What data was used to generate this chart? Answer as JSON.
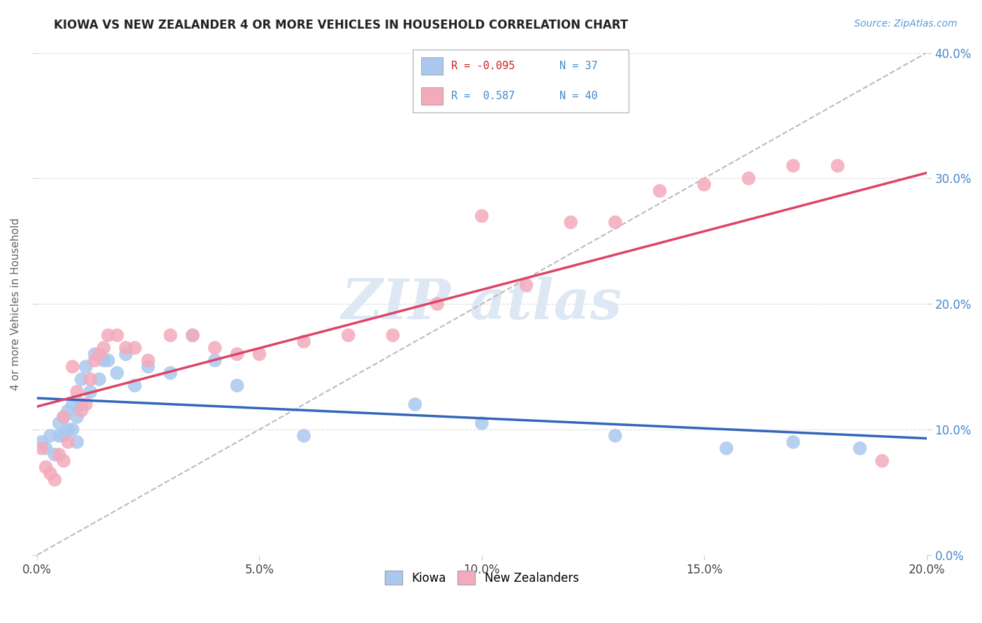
{
  "title": "KIOWA VS NEW ZEALANDER 4 OR MORE VEHICLES IN HOUSEHOLD CORRELATION CHART",
  "source_text": "Source: ZipAtlas.com",
  "xlabel_ticks": [
    "0.0%",
    "5.0%",
    "10.0%",
    "15.0%",
    "20.0%"
  ],
  "ylabel_ticks_right": [
    "0.0%",
    "10.0%",
    "20.0%",
    "30.0%",
    "40.0%"
  ],
  "xmin": 0.0,
  "xmax": 0.2,
  "ymin": 0.0,
  "ymax": 0.4,
  "ylabel": "4 or more Vehicles in Household",
  "legend_label1": "Kiowa",
  "legend_label2": "New Zealanders",
  "R1": -0.095,
  "N1": 37,
  "R2": 0.587,
  "N2": 40,
  "color1": "#aac8ee",
  "color2": "#f4aabb",
  "trendline1_color": "#3366bb",
  "trendline2_color": "#dd4466",
  "trendline_dashed_color": "#bbbbbb",
  "kiowa_x": [
    0.001,
    0.002,
    0.003,
    0.004,
    0.005,
    0.005,
    0.006,
    0.006,
    0.007,
    0.007,
    0.008,
    0.008,
    0.009,
    0.009,
    0.01,
    0.01,
    0.011,
    0.012,
    0.013,
    0.014,
    0.015,
    0.016,
    0.018,
    0.02,
    0.022,
    0.025,
    0.03,
    0.035,
    0.04,
    0.045,
    0.06,
    0.085,
    0.1,
    0.13,
    0.155,
    0.17,
    0.185
  ],
  "kiowa_y": [
    0.09,
    0.085,
    0.095,
    0.08,
    0.095,
    0.105,
    0.11,
    0.095,
    0.115,
    0.1,
    0.12,
    0.1,
    0.11,
    0.09,
    0.14,
    0.12,
    0.15,
    0.13,
    0.16,
    0.14,
    0.155,
    0.155,
    0.145,
    0.16,
    0.135,
    0.15,
    0.145,
    0.175,
    0.155,
    0.135,
    0.095,
    0.12,
    0.105,
    0.095,
    0.085,
    0.09,
    0.085
  ],
  "nz_x": [
    0.001,
    0.002,
    0.003,
    0.004,
    0.005,
    0.006,
    0.006,
    0.007,
    0.008,
    0.009,
    0.01,
    0.011,
    0.012,
    0.013,
    0.014,
    0.015,
    0.016,
    0.018,
    0.02,
    0.022,
    0.025,
    0.03,
    0.035,
    0.04,
    0.045,
    0.05,
    0.06,
    0.07,
    0.08,
    0.09,
    0.1,
    0.11,
    0.12,
    0.13,
    0.14,
    0.15,
    0.16,
    0.17,
    0.18,
    0.19
  ],
  "nz_y": [
    0.085,
    0.07,
    0.065,
    0.06,
    0.08,
    0.075,
    0.11,
    0.09,
    0.15,
    0.13,
    0.115,
    0.12,
    0.14,
    0.155,
    0.16,
    0.165,
    0.175,
    0.175,
    0.165,
    0.165,
    0.155,
    0.175,
    0.175,
    0.165,
    0.16,
    0.16,
    0.17,
    0.175,
    0.175,
    0.2,
    0.27,
    0.215,
    0.265,
    0.265,
    0.29,
    0.295,
    0.3,
    0.31,
    0.31,
    0.075
  ]
}
